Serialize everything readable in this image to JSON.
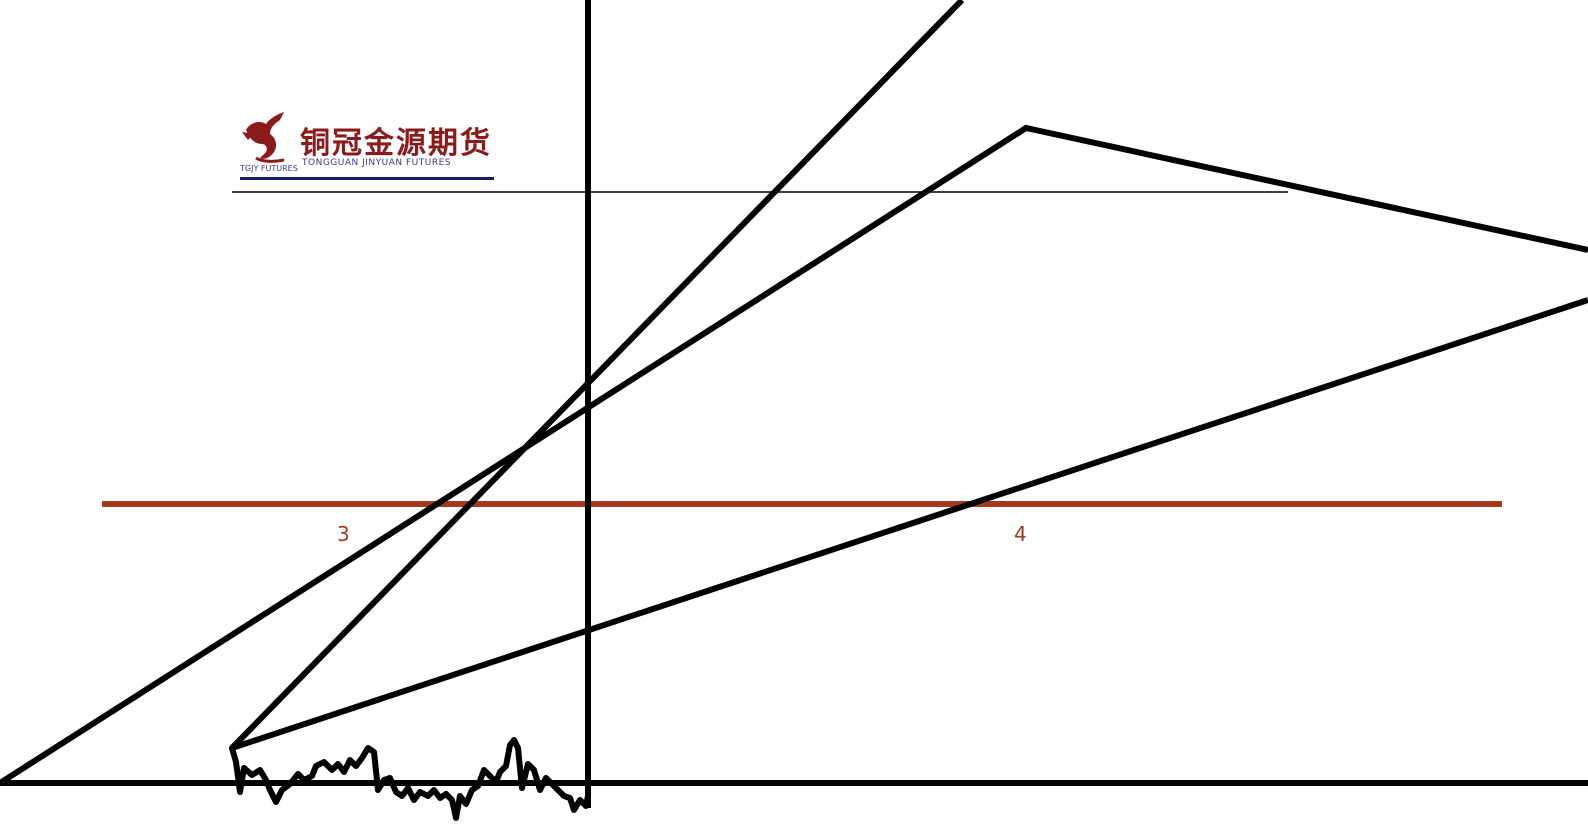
{
  "logo": {
    "chinese_name": "铜冠金源期货",
    "english_name": "TONGGUAN JINYUAN FUTURES",
    "english_prefix": "TGJY FUTURES",
    "brand_color": "#8b1a1a",
    "text_accent_color": "#3b3b8a"
  },
  "labels": {
    "segment_3": "3",
    "segment_4": "4"
  },
  "colors": {
    "stroke": "#000000",
    "divider": "#a33a1e",
    "background": "#ffffff"
  }
}
